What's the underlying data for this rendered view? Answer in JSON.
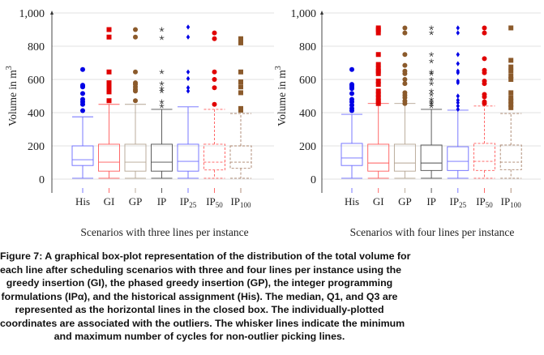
{
  "chart_data": [
    {
      "type": "box",
      "ylabel": "Volume in m",
      "ylabel_sup": "3",
      "xlabel": "Scenarios with three lines per instance",
      "ylim": [
        0,
        1000
      ],
      "yticks": [
        "0",
        "200",
        "400",
        "600",
        "800",
        "1,000"
      ],
      "ytick_values": [
        0,
        200,
        400,
        600,
        800,
        1000
      ],
      "grid": "horizontal",
      "categories": [
        {
          "base": "His",
          "sub": ""
        },
        {
          "base": "GI",
          "sub": ""
        },
        {
          "base": "GP",
          "sub": ""
        },
        {
          "base": "IP",
          "sub": ""
        },
        {
          "base": "IP",
          "sub": "25"
        },
        {
          "base": "IP",
          "sub": "50"
        },
        {
          "base": "IP",
          "sub": "100"
        }
      ],
      "boxes": [
        {
          "min": 5,
          "q1": 82,
          "median": 117,
          "q3": 200,
          "max": 375,
          "outliers": [
            412,
            450,
            465,
            480,
            515,
            555,
            560,
            565,
            660
          ]
        },
        {
          "min": 5,
          "q1": 48,
          "median": 102,
          "q3": 210,
          "max": 450,
          "outliers": [
            472,
            525,
            540,
            555,
            570,
            580,
            645,
            855,
            900
          ]
        },
        {
          "min": 5,
          "q1": 48,
          "median": 102,
          "q3": 210,
          "max": 450,
          "outliers": [
            472,
            530,
            540,
            555,
            570,
            580,
            645,
            855,
            900
          ]
        },
        {
          "min": 5,
          "q1": 48,
          "median": 102,
          "q3": 210,
          "max": 420,
          "outliers": [
            440,
            465,
            530,
            545,
            575,
            645,
            850,
            900
          ]
        },
        {
          "min": 5,
          "q1": 48,
          "median": 107,
          "q3": 210,
          "max": 435,
          "outliers": [
            530,
            550,
            605,
            645,
            855,
            915
          ]
        },
        {
          "min": 5,
          "q1": 55,
          "median": 102,
          "q3": 210,
          "max": 420,
          "outliers": [
            450,
            550,
            600,
            645,
            845,
            880
          ]
        },
        {
          "min": 5,
          "q1": 65,
          "median": 102,
          "q3": 200,
          "max": 395,
          "outliers": [
            415,
            425,
            520,
            555,
            585,
            645,
            820,
            835,
            845
          ]
        }
      ]
    },
    {
      "type": "box",
      "ylabel": "Volume in m",
      "ylabel_sup": "3",
      "xlabel": "Scenarios with four lines per instance",
      "ylim": [
        0,
        1000
      ],
      "yticks": [
        "0",
        "200",
        "400",
        "600",
        "800",
        "1,000"
      ],
      "ytick_values": [
        0,
        200,
        400,
        600,
        800,
        1000
      ],
      "grid": "horizontal",
      "categories": [
        {
          "base": "His",
          "sub": ""
        },
        {
          "base": "GI",
          "sub": ""
        },
        {
          "base": "GP",
          "sub": ""
        },
        {
          "base": "IP",
          "sub": ""
        },
        {
          "base": "IP",
          "sub": "25"
        },
        {
          "base": "IP",
          "sub": "50"
        },
        {
          "base": "IP",
          "sub": "100"
        }
      ],
      "boxes": [
        {
          "min": 5,
          "q1": 82,
          "median": 127,
          "q3": 215,
          "max": 390,
          "outliers": [
            412,
            425,
            445,
            465,
            480,
            515,
            545,
            555,
            565,
            570,
            660
          ]
        },
        {
          "min": 5,
          "q1": 48,
          "median": 97,
          "q3": 210,
          "max": 455,
          "outliers": [
            455,
            470,
            490,
            510,
            530,
            570,
            590,
            635,
            650,
            665,
            690,
            750,
            880,
            900,
            910
          ]
        },
        {
          "min": 5,
          "q1": 48,
          "median": 97,
          "q3": 210,
          "max": 455,
          "outliers": [
            455,
            470,
            490,
            505,
            520,
            575,
            600,
            635,
            650,
            685,
            750,
            880,
            910
          ]
        },
        {
          "min": 5,
          "q1": 52,
          "median": 97,
          "q3": 205,
          "max": 420,
          "outliers": [
            440,
            455,
            465,
            480,
            510,
            530,
            575,
            600,
            635,
            645,
            710,
            750,
            880,
            910
          ]
        },
        {
          "min": 5,
          "q1": 52,
          "median": 107,
          "q3": 195,
          "max": 415,
          "outliers": [
            420,
            440,
            460,
            475,
            500,
            580,
            590,
            640,
            650,
            695,
            750,
            880,
            910
          ]
        },
        {
          "min": 5,
          "q1": 52,
          "median": 107,
          "q3": 215,
          "max": 440,
          "outliers": [
            455,
            465,
            495,
            510,
            575,
            590,
            640,
            655,
            725,
            880,
            910
          ]
        },
        {
          "min": 5,
          "q1": 57,
          "median": 102,
          "q3": 205,
          "max": 395,
          "outliers": [
            430,
            450,
            470,
            490,
            520,
            600,
            620,
            650,
            675,
            715,
            910
          ]
        }
      ]
    }
  ],
  "styles": [
    {
      "box_color": "#6b6bff",
      "outlier_color": "#0000e6",
      "marker": "circle",
      "dashed": false
    },
    {
      "box_color": "#ff5a5a",
      "outlier_color": "#e00000",
      "marker": "square",
      "dashed": false
    },
    {
      "box_color": "#b4a492",
      "outlier_color": "#8b5a2b",
      "marker": "circle",
      "dashed": false
    },
    {
      "box_color": "#4d4d4d",
      "outlier_color": "#333333",
      "marker": "star",
      "dashed": false
    },
    {
      "box_color": "#6b6bff",
      "outlier_color": "#0000e6",
      "marker": "diamond",
      "dashed": false
    },
    {
      "box_color": "#ff5a5a",
      "outlier_color": "#e00000",
      "marker": "circle",
      "dashed": true
    },
    {
      "box_color": "#a8826a",
      "outlier_color": "#8b5a2b",
      "marker": "square",
      "dashed": true
    }
  ],
  "caption": {
    "lines": [
      "Figure 7: A graphical box-plot representation of the distribution of the total volume for",
      "each line after scheduling scenarios with three and four lines per instance using the",
      "greedy insertion (GI), the phased greedy insertion (GP), the integer programming",
      "formulations (IPα), and the historical assignment (His). The median, Q1, and Q3 are",
      "represented as the horizontal lines in the closed box. The individually-plotted",
      "coordinates are associated with the outliers. The whisker lines indicate the minimum",
      "and maximum number of cycles for non-outlier picking lines."
    ]
  }
}
